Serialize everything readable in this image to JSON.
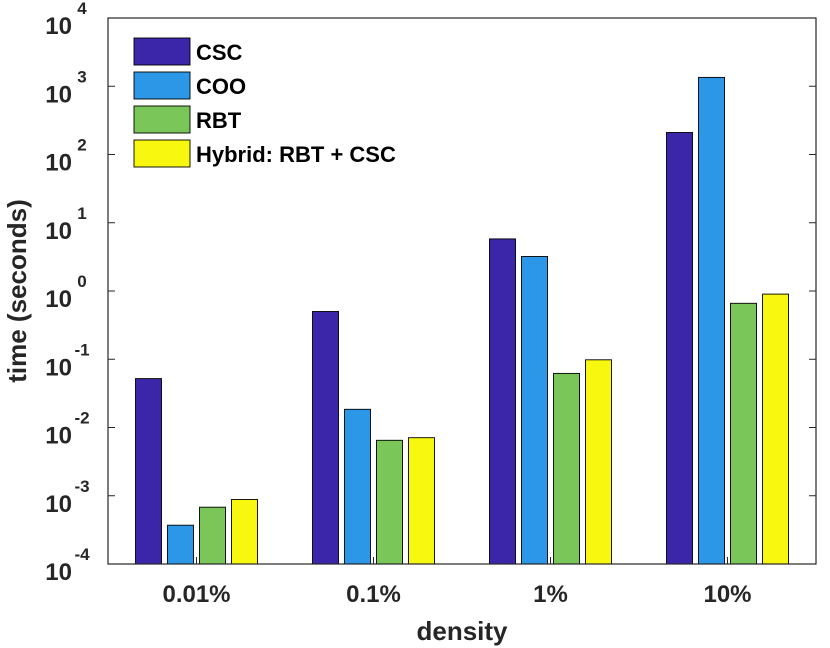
{
  "chart_data": {
    "type": "bar",
    "xlabel": "density",
    "ylabel": "time (seconds)",
    "y_scale": "log",
    "ylim": [
      0.0001,
      10000
    ],
    "y_tick_exponents": [
      "-4",
      "-3",
      "-2",
      "-1",
      "0",
      "1",
      "2",
      "3",
      "4"
    ],
    "y_tick_base": "10",
    "categories": [
      "0.01%",
      "0.1%",
      "1%",
      "10%"
    ],
    "legend_position": "top-left",
    "grid": false,
    "series": [
      {
        "name": "CSC",
        "color": "#3b25a8",
        "values": [
          0.052,
          0.5,
          5.8,
          210
        ]
      },
      {
        "name": "COO",
        "color": "#2b97e6",
        "values": [
          0.00037,
          0.0185,
          3.2,
          1350
        ]
      },
      {
        "name": "RBT",
        "color": "#7ac658",
        "values": [
          0.00068,
          0.0065,
          0.062,
          0.66
        ]
      },
      {
        "name": "Hybrid: RBT + CSC",
        "color": "#f7f710",
        "values": [
          0.00088,
          0.0071,
          0.098,
          0.9
        ]
      }
    ]
  }
}
